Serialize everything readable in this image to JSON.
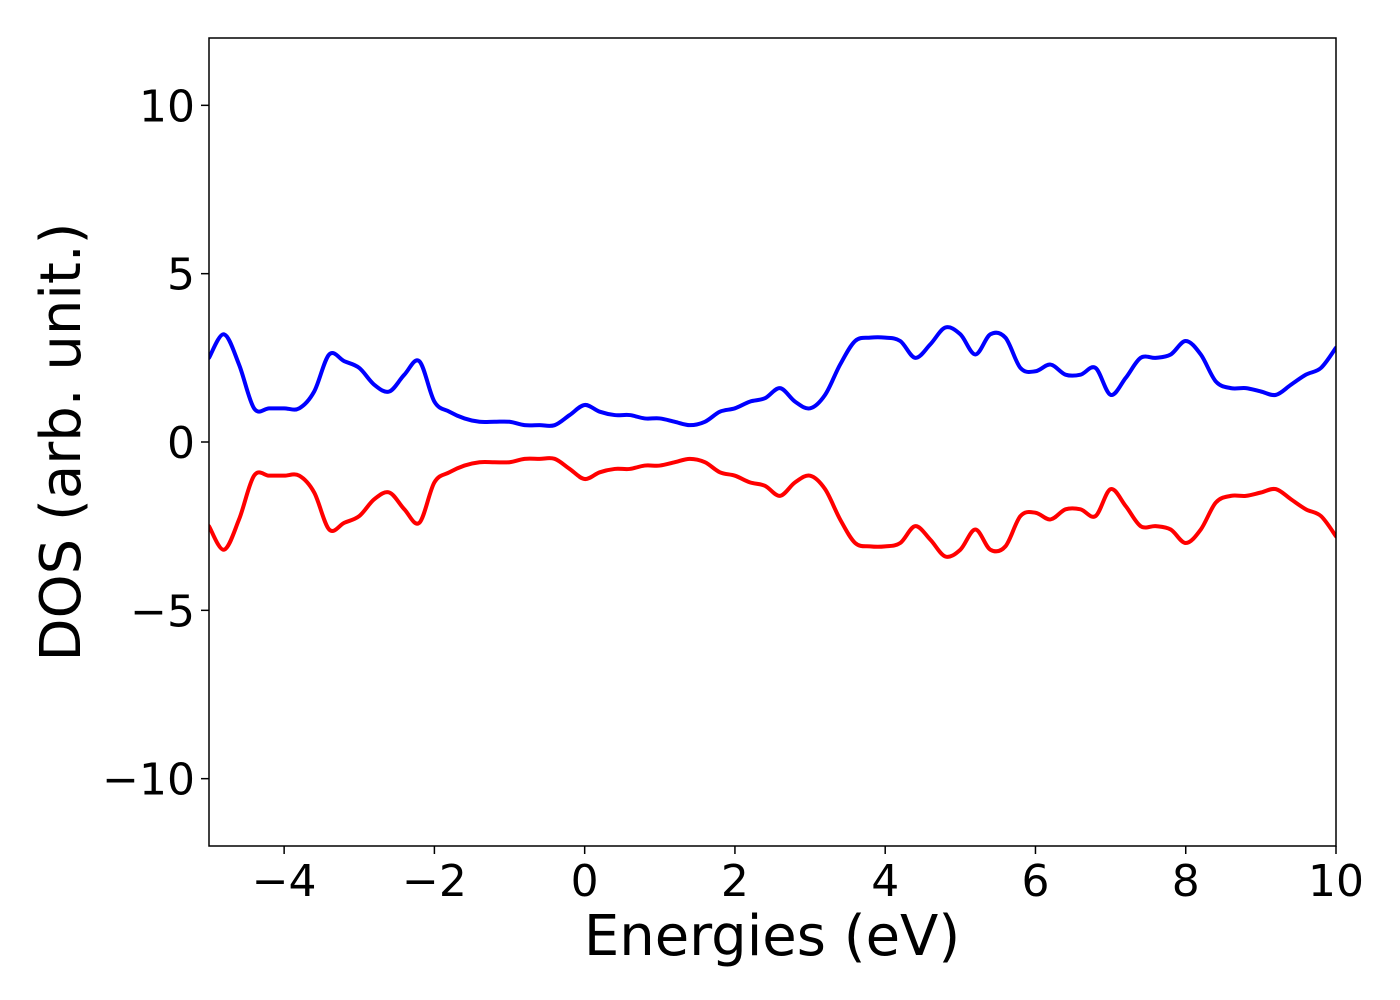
{
  "chart_data": {
    "type": "line",
    "xlabel": "Energies (eV)",
    "ylabel": "DOS (arb. unit.)",
    "xlim": [
      -5,
      10
    ],
    "ylim": [
      -12,
      12
    ],
    "x_ticks": [
      -4,
      -2,
      0,
      2,
      4,
      6,
      8,
      10
    ],
    "x_tick_labels": [
      "−4",
      "−2",
      "0",
      "2",
      "4",
      "6",
      "8",
      "10"
    ],
    "y_ticks": [
      -10,
      -5,
      0,
      5,
      10
    ],
    "y_tick_labels": [
      "−10",
      "−5",
      "0",
      "5",
      "10"
    ],
    "grid": false,
    "legend": "none",
    "series": [
      {
        "color": "#0000ff",
        "x": [
          -5.0,
          -4.8,
          -4.6,
          -4.4,
          -4.2,
          -4.0,
          -3.8,
          -3.6,
          -3.4,
          -3.2,
          -3.0,
          -2.8,
          -2.6,
          -2.4,
          -2.2,
          -2.0,
          -1.8,
          -1.6,
          -1.4,
          -1.2,
          -1.0,
          -0.8,
          -0.6,
          -0.4,
          -0.2,
          0.0,
          0.2,
          0.4,
          0.6,
          0.8,
          1.0,
          1.2,
          1.4,
          1.6,
          1.8,
          2.0,
          2.2,
          2.4,
          2.6,
          2.8,
          3.0,
          3.2,
          3.4,
          3.6,
          3.8,
          4.0,
          4.2,
          4.4,
          4.6,
          4.8,
          5.0,
          5.2,
          5.4,
          5.6,
          5.8,
          6.0,
          6.2,
          6.4,
          6.6,
          6.8,
          7.0,
          7.2,
          7.4,
          7.6,
          7.8,
          8.0,
          8.2,
          8.4,
          8.6,
          8.8,
          9.0,
          9.2,
          9.4,
          9.6,
          9.8,
          10.0
        ],
        "y": [
          2.5,
          3.2,
          2.3,
          1.0,
          1.0,
          1.0,
          1.0,
          1.5,
          2.6,
          2.4,
          2.2,
          1.7,
          1.5,
          2.0,
          2.4,
          1.2,
          0.9,
          0.7,
          0.6,
          0.6,
          0.6,
          0.5,
          0.5,
          0.5,
          0.8,
          1.1,
          0.9,
          0.8,
          0.8,
          0.7,
          0.7,
          0.6,
          0.5,
          0.6,
          0.9,
          1.0,
          1.2,
          1.3,
          1.6,
          1.2,
          1.0,
          1.4,
          2.3,
          3.0,
          3.1,
          3.1,
          3.0,
          2.5,
          2.9,
          3.4,
          3.2,
          2.6,
          3.2,
          3.1,
          2.2,
          2.1,
          2.3,
          2.0,
          2.0,
          2.2,
          1.4,
          1.9,
          2.5,
          2.5,
          2.6,
          3.0,
          2.6,
          1.8,
          1.6,
          1.6,
          1.5,
          1.4,
          1.7,
          2.0,
          2.2,
          2.8
        ]
      },
      {
        "color": "#ff0000",
        "x": [
          -5.0,
          -4.8,
          -4.6,
          -4.4,
          -4.2,
          -4.0,
          -3.8,
          -3.6,
          -3.4,
          -3.2,
          -3.0,
          -2.8,
          -2.6,
          -2.4,
          -2.2,
          -2.0,
          -1.8,
          -1.6,
          -1.4,
          -1.2,
          -1.0,
          -0.8,
          -0.6,
          -0.4,
          -0.2,
          0.0,
          0.2,
          0.4,
          0.6,
          0.8,
          1.0,
          1.2,
          1.4,
          1.6,
          1.8,
          2.0,
          2.2,
          2.4,
          2.6,
          2.8,
          3.0,
          3.2,
          3.4,
          3.6,
          3.8,
          4.0,
          4.2,
          4.4,
          4.6,
          4.8,
          5.0,
          5.2,
          5.4,
          5.6,
          5.8,
          6.0,
          6.2,
          6.4,
          6.6,
          6.8,
          7.0,
          7.2,
          7.4,
          7.6,
          7.8,
          8.0,
          8.2,
          8.4,
          8.6,
          8.8,
          9.0,
          9.2,
          9.4,
          9.6,
          9.8,
          10.0
        ],
        "y": [
          -2.5,
          -3.2,
          -2.3,
          -1.0,
          -1.0,
          -1.0,
          -1.0,
          -1.5,
          -2.6,
          -2.4,
          -2.2,
          -1.7,
          -1.5,
          -2.0,
          -2.4,
          -1.2,
          -0.9,
          -0.7,
          -0.6,
          -0.6,
          -0.6,
          -0.5,
          -0.5,
          -0.5,
          -0.8,
          -1.1,
          -0.9,
          -0.8,
          -0.8,
          -0.7,
          -0.7,
          -0.6,
          -0.5,
          -0.6,
          -0.9,
          -1.0,
          -1.2,
          -1.3,
          -1.6,
          -1.2,
          -1.0,
          -1.4,
          -2.3,
          -3.0,
          -3.1,
          -3.1,
          -3.0,
          -2.5,
          -2.9,
          -3.4,
          -3.2,
          -2.6,
          -3.2,
          -3.1,
          -2.2,
          -2.1,
          -2.3,
          -2.0,
          -2.0,
          -2.2,
          -1.4,
          -1.9,
          -2.5,
          -2.5,
          -2.6,
          -3.0,
          -2.6,
          -1.8,
          -1.6,
          -1.6,
          -1.5,
          -1.4,
          -1.7,
          -2.0,
          -2.2,
          -2.8
        ]
      }
    ]
  }
}
